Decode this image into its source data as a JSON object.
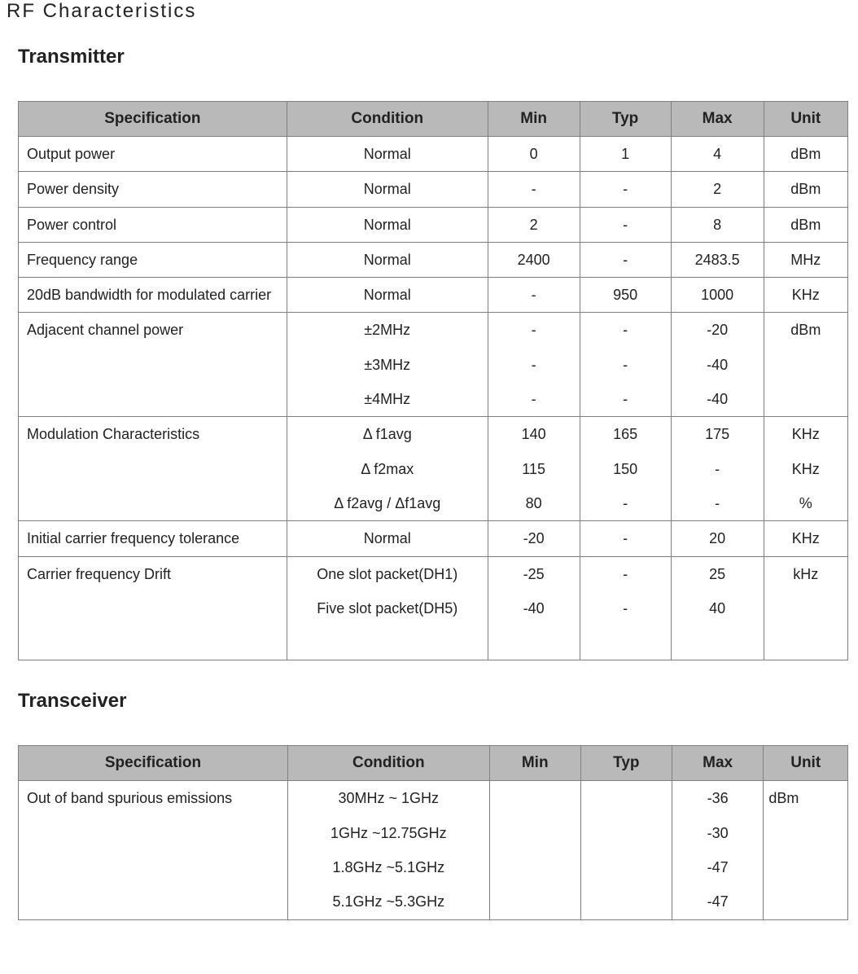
{
  "page_title": "RF Characteristics",
  "columns": [
    "Specification",
    "Condition",
    "Min",
    "Typ",
    "Max",
    "Unit"
  ],
  "sections": [
    {
      "title": "Transmitter",
      "unit_left_align": false,
      "rows": [
        {
          "spec": [
            "Output power"
          ],
          "cond": [
            "Normal"
          ],
          "min": [
            "0"
          ],
          "typ": [
            "1"
          ],
          "max": [
            "4"
          ],
          "unit": [
            "dBm"
          ]
        },
        {
          "spec": [
            "Power density"
          ],
          "cond": [
            "Normal"
          ],
          "min": [
            "-"
          ],
          "typ": [
            "-"
          ],
          "max": [
            "2"
          ],
          "unit": [
            "dBm"
          ]
        },
        {
          "spec": [
            "Power control"
          ],
          "cond": [
            "Normal"
          ],
          "min": [
            "2"
          ],
          "typ": [
            "-"
          ],
          "max": [
            "8"
          ],
          "unit": [
            "dBm"
          ]
        },
        {
          "spec": [
            "Frequency range"
          ],
          "cond": [
            "Normal"
          ],
          "min": [
            "2400"
          ],
          "typ": [
            "-"
          ],
          "max": [
            "2483.5"
          ],
          "unit": [
            "MHz"
          ]
        },
        {
          "spec": [
            "20dB bandwidth for modulated carrier"
          ],
          "cond": [
            "Normal"
          ],
          "min": [
            "-"
          ],
          "typ": [
            "950"
          ],
          "max": [
            "1000"
          ],
          "unit": [
            "KHz"
          ]
        },
        {
          "spec": [
            "Adjacent channel power"
          ],
          "cond": [
            "±2MHz",
            "±3MHz",
            "±4MHz"
          ],
          "min": [
            "-",
            "-",
            "-"
          ],
          "typ": [
            "-",
            "-",
            "-"
          ],
          "max": [
            "-20",
            "-40",
            "-40"
          ],
          "unit": [
            "dBm"
          ]
        },
        {
          "spec": [
            "Modulation Characteristics"
          ],
          "cond": [
            "Δ f1avg",
            "Δ f2max",
            "Δ f2avg / Δf1avg"
          ],
          "min": [
            "140",
            "115",
            "80"
          ],
          "typ": [
            "165",
            "150",
            "-"
          ],
          "max": [
            "175",
            "-",
            "-"
          ],
          "unit": [
            "KHz",
            "KHz",
            "%"
          ]
        },
        {
          "spec": [
            "Initial carrier frequency tolerance"
          ],
          "cond": [
            "Normal"
          ],
          "min": [
            "-20"
          ],
          "typ": [
            "-"
          ],
          "max": [
            "20"
          ],
          "unit": [
            "KHz"
          ]
        },
        {
          "spec": [
            "Carrier frequency Drift"
          ],
          "cond": [
            "One slot packet(DH1)",
            "Five slot packet(DH5)",
            ""
          ],
          "min": [
            "-25",
            "-40",
            ""
          ],
          "typ": [
            "-",
            "-",
            ""
          ],
          "max": [
            "25",
            "40",
            ""
          ],
          "unit": [
            "kHz"
          ]
        }
      ]
    },
    {
      "title": "Transceiver",
      "unit_left_align": true,
      "rows": [
        {
          "spec": [
            "Out of band spurious emissions"
          ],
          "cond": [
            "30MHz ~ 1GHz",
            "1GHz ~12.75GHz",
            "1.8GHz ~5.1GHz",
            "5.1GHz ~5.3GHz"
          ],
          "min": [
            "",
            "",
            "",
            ""
          ],
          "typ": [
            "",
            "",
            "",
            ""
          ],
          "max": [
            "-36",
            "-30",
            "-47",
            "-47"
          ],
          "unit": [
            "dBm"
          ]
        }
      ]
    }
  ]
}
